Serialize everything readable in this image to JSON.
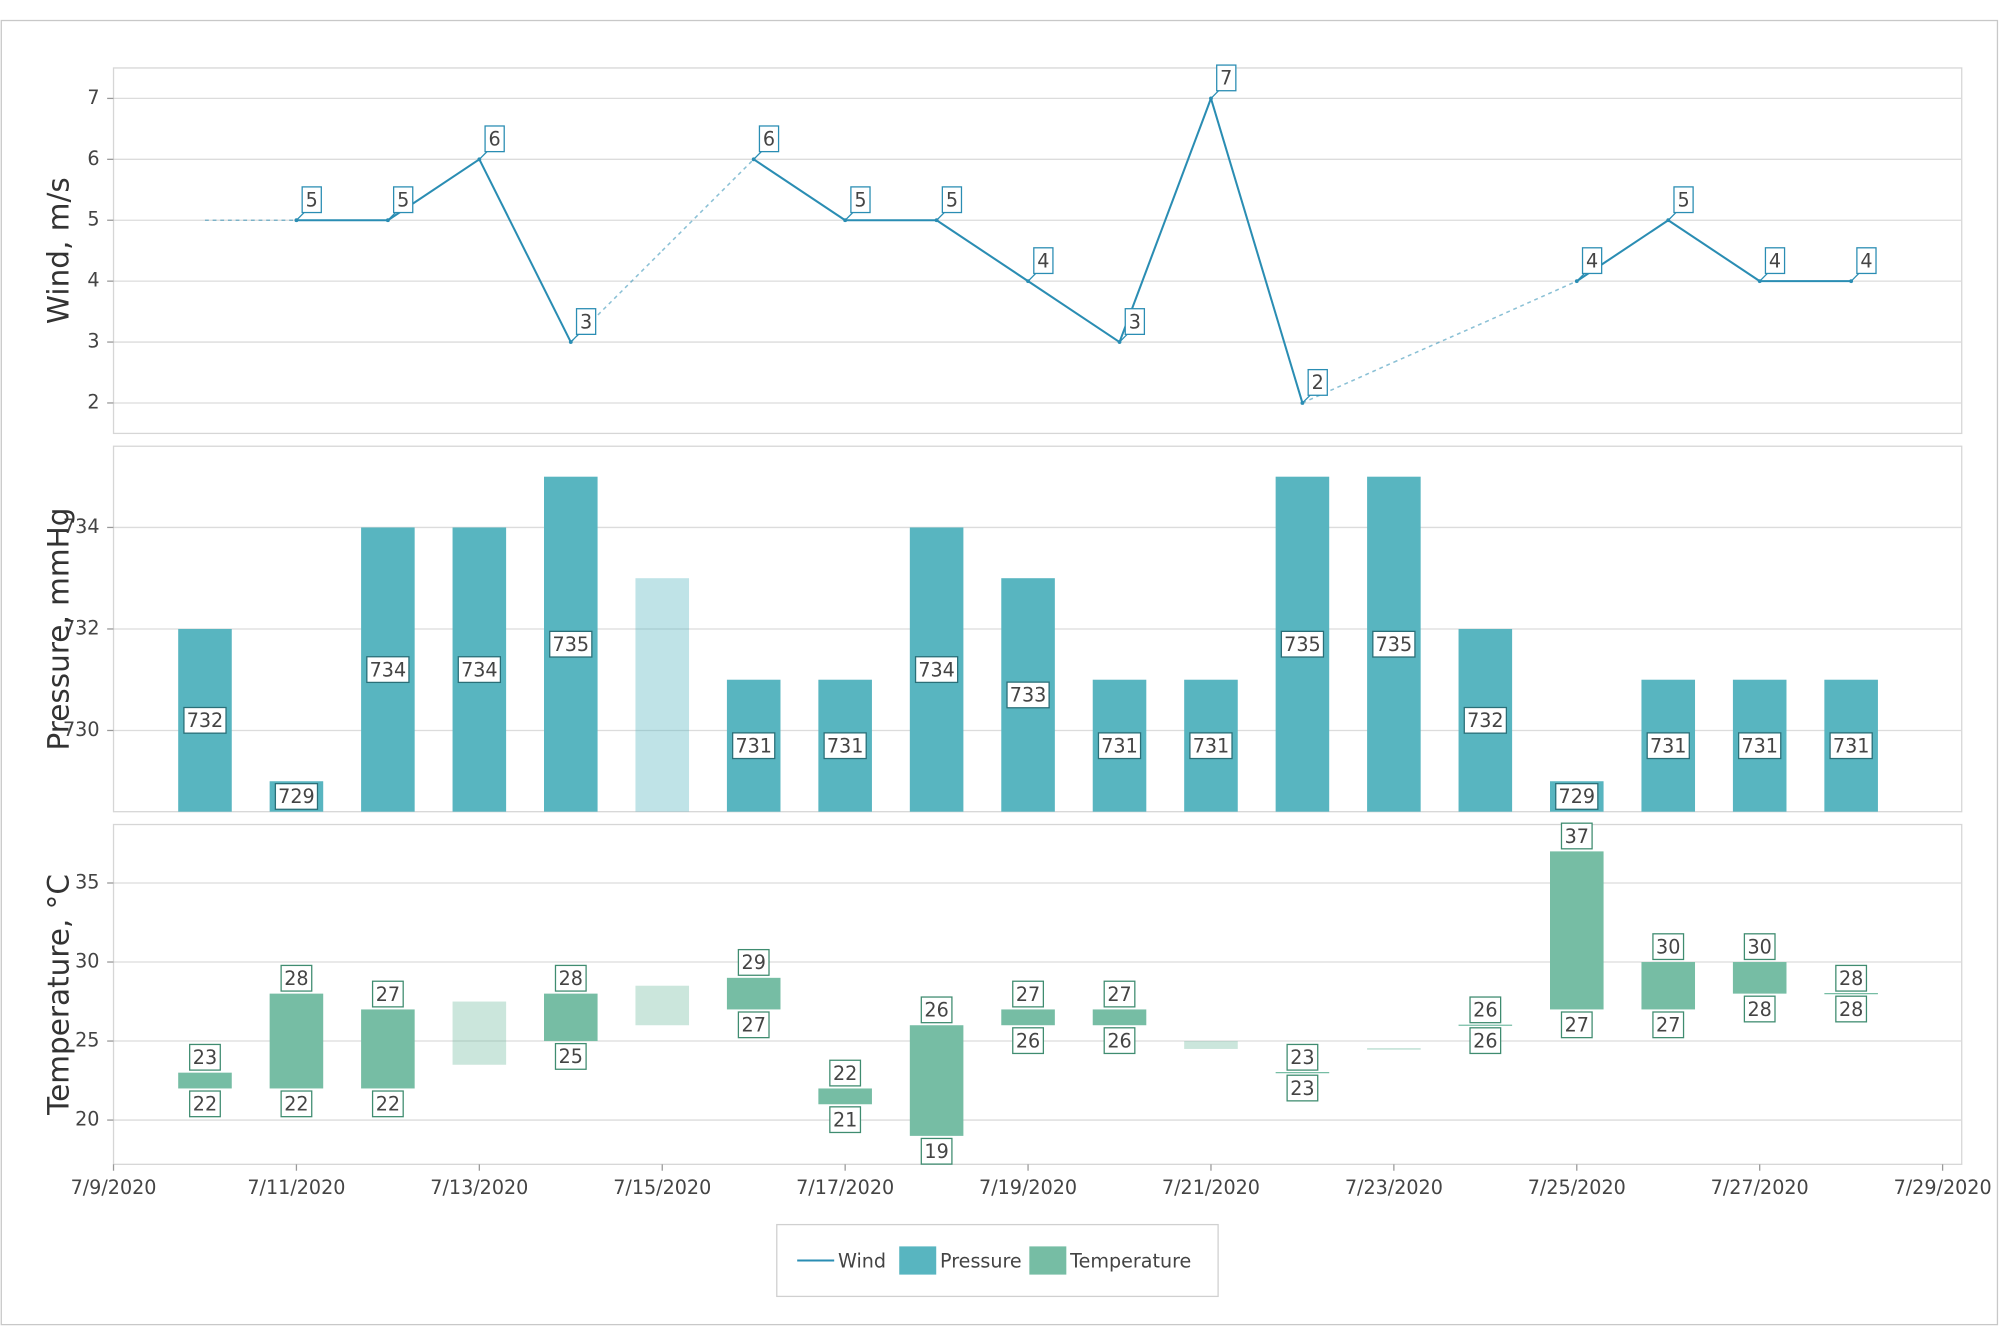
{
  "chart_data": {
    "type": "combo",
    "x": [
      "7/10/2020",
      "7/11/2020",
      "7/12/2020",
      "7/13/2020",
      "7/14/2020",
      "7/15/2020",
      "7/16/2020",
      "7/17/2020",
      "7/18/2020",
      "7/19/2020",
      "7/20/2020",
      "7/21/2020",
      "7/22/2020",
      "7/23/2020",
      "7/24/2020",
      "7/25/2020",
      "7/26/2020",
      "7/27/2020",
      "7/28/2020"
    ],
    "xlim": [
      "7/9/2020",
      "7/29/2020"
    ],
    "xticks": [
      "7/9/2020",
      "7/11/2020",
      "7/13/2020",
      "7/15/2020",
      "7/17/2020",
      "7/19/2020",
      "7/21/2020",
      "7/23/2020",
      "7/25/2020",
      "7/27/2020",
      "7/29/2020"
    ],
    "grid": true,
    "legend": "bottom",
    "series": [
      {
        "name": "Wind",
        "type": "line",
        "color": "#2a8db3",
        "y_label": "Wind, m/s",
        "values": [
          5,
          5,
          5,
          6,
          3,
          4.5,
          6,
          5,
          5,
          4,
          3,
          7,
          2,
          2.67,
          3.33,
          4,
          5,
          4,
          4
        ],
        "faded": [
          0,
          5,
          13,
          14
        ],
        "ylim": [
          1.5,
          7.5
        ],
        "yticks": [
          2,
          3,
          4,
          5,
          6,
          7
        ]
      },
      {
        "name": "Pressure",
        "type": "bar",
        "color": "#58b5c0",
        "y_label": "Pressure, mmHg",
        "values": [
          732,
          729,
          734,
          734,
          735,
          733,
          731,
          731,
          734,
          733,
          731,
          731,
          735,
          735,
          732,
          729,
          731,
          731,
          731
        ],
        "faded": [
          5
        ],
        "ylim": [
          728.4,
          735.6
        ],
        "yticks": [
          730,
          732,
          734
        ]
      },
      {
        "name": "Temperature",
        "type": "rangebar",
        "color": "#76bda4",
        "y_label": "Temperature, °C",
        "low": [
          22,
          22,
          22,
          23.5,
          25,
          26,
          27,
          21,
          19,
          26,
          26,
          24.5,
          23,
          24.5,
          26,
          27,
          27,
          28,
          28
        ],
        "high": [
          23,
          28,
          27,
          27.5,
          28,
          28.5,
          29,
          22,
          26,
          27,
          27,
          25,
          23,
          24.5,
          26,
          37,
          30,
          30,
          28
        ],
        "faded": [
          3,
          5,
          11,
          13
        ],
        "ylim": [
          17.2,
          38.7
        ],
        "yticks": [
          20,
          25,
          30,
          35
        ]
      }
    ]
  }
}
